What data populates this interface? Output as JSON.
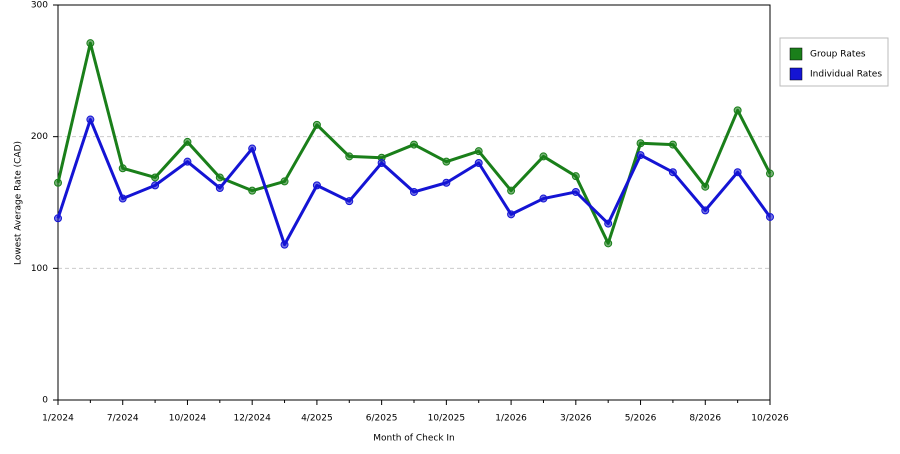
{
  "chart_data": {
    "type": "line",
    "x_label": "Month of Check In",
    "y_label": "Lowest Average Rate (CAD)",
    "categories": [
      "1/2024",
      null,
      "7/2024",
      null,
      "10/2024",
      null,
      "12/2024",
      null,
      "4/2025",
      null,
      "6/2025",
      null,
      "10/2025",
      null,
      "1/2026",
      null,
      "3/2026",
      null,
      "5/2026",
      null,
      "8/2026",
      null,
      "10/2026"
    ],
    "series": [
      {
        "name": "Group Rates",
        "color": "#1a7f1a",
        "values": [
          165,
          271,
          176,
          169,
          196,
          169,
          159,
          166,
          209,
          185,
          184,
          194,
          181,
          189,
          159,
          185,
          170,
          119,
          195,
          194,
          162,
          220,
          172
        ]
      },
      {
        "name": "Individual Rates",
        "color": "#1414d4",
        "values": [
          138,
          213,
          153,
          163,
          181,
          161,
          191,
          118,
          163,
          151,
          180,
          158,
          165,
          180,
          141,
          153,
          158,
          134,
          186,
          173,
          144,
          173,
          139
        ]
      }
    ],
    "ylim": [
      0,
      300
    ],
    "yticks": [
      0,
      100,
      200,
      300
    ],
    "grid": true,
    "legend": "right"
  }
}
